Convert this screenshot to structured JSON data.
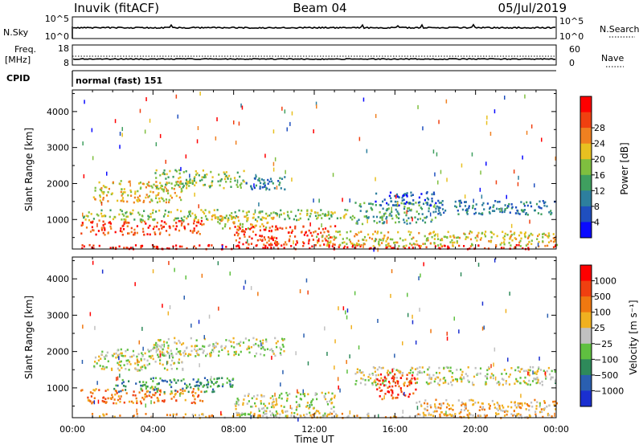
{
  "header": {
    "station": "Inuvik (fitACF)",
    "beam": "Beam 04",
    "date": "05/Jul/2019"
  },
  "top_panels": {
    "nsky": {
      "label": "N.Sky",
      "ticks": [
        "10^5",
        "10^0"
      ]
    },
    "nsearch": {
      "label": "N.Search",
      "ticks": [
        "10^5",
        "10^0"
      ]
    },
    "freq": {
      "label": "Freq.",
      "unit": "[MHz]",
      "ticks": [
        "18",
        "8"
      ]
    },
    "nave": {
      "label": "Nave",
      "ticks": [
        "60",
        "0"
      ]
    },
    "cpid": {
      "label": "CPID",
      "value": "normal (fast) 151"
    }
  },
  "chart_data": [
    {
      "type": "heatmap",
      "panel": "power",
      "xlabel": "",
      "ylabel": "Slant Range [km]",
      "x_ticks": [
        "00:00",
        "04:00",
        "08:00",
        "12:00",
        "16:00",
        "20:00",
        "00:00"
      ],
      "xlim_hours": [
        0,
        24
      ],
      "y_ticks": [
        1000,
        2000,
        3000,
        4000
      ],
      "ylim": [
        180,
        4600
      ],
      "colorbar": {
        "label": "Power [dB]",
        "ticks": [
          "4",
          "8",
          "12",
          "16",
          "20",
          "24",
          "28"
        ],
        "colors": [
          "#0a0aff",
          "#1f4fbf",
          "#2d7f9e",
          "#3f9f5f",
          "#7fbf3f",
          "#e8c020",
          "#f08020",
          "#f04010",
          "#ff0000"
        ]
      },
      "bands": [
        {
          "t0": 0.4,
          "t1": 6.5,
          "r0": 600,
          "r1": 1000,
          "level": 7
        },
        {
          "t0": 6.5,
          "t1": 10,
          "r0": 780,
          "r1": 1150,
          "level": 5
        },
        {
          "t0": 8,
          "t1": 13,
          "r0": 300,
          "r1": 850,
          "level": 7
        },
        {
          "t0": 0.4,
          "t1": 24,
          "r0": 200,
          "r1": 320,
          "level": 8
        },
        {
          "t0": 1,
          "t1": 5.5,
          "r0": 1500,
          "r1": 2100,
          "level": 5
        },
        {
          "t0": 4,
          "t1": 8.5,
          "r0": 1900,
          "r1": 2400,
          "level": 4
        },
        {
          "t0": 8.5,
          "t1": 10.5,
          "r0": 1850,
          "r1": 2250,
          "level": 2
        },
        {
          "t0": 0.5,
          "t1": 14,
          "r0": 1000,
          "r1": 1300,
          "level": 4
        },
        {
          "t0": 14,
          "t1": 18,
          "r0": 900,
          "r1": 1500,
          "level": 3
        },
        {
          "t0": 18,
          "t1": 24,
          "r0": 1150,
          "r1": 1550,
          "level": 2
        },
        {
          "t0": 15,
          "t1": 18,
          "r0": 1400,
          "r1": 1800,
          "level": 1
        },
        {
          "t0": 12,
          "t1": 24,
          "r0": 280,
          "r1": 700,
          "level": 5
        }
      ]
    },
    {
      "type": "heatmap",
      "panel": "velocity",
      "xlabel": "Time UT",
      "ylabel": "Slant Range [km]",
      "x_ticks": [
        "00:00",
        "04:00",
        "08:00",
        "12:00",
        "16:00",
        "20:00",
        "00:00"
      ],
      "xlim_hours": [
        0,
        24
      ],
      "y_ticks": [
        1000,
        2000,
        3000,
        4000
      ],
      "ylim": [
        180,
        4600
      ],
      "colorbar": {
        "label": "Velocity [m s⁻¹]",
        "ticks": [
          "1000",
          "500",
          "100",
          "25",
          "−25",
          "−100",
          "−500",
          "−1000"
        ],
        "colors": [
          "#1a2fd0",
          "#2a5fb0",
          "#2e8a5a",
          "#5fc040",
          "#c0c0c0",
          "#f0b020",
          "#f07810",
          "#f04010",
          "#ff0000"
        ]
      },
      "bands": [
        {
          "t0": 0.4,
          "t1": 6.5,
          "r0": 600,
          "r1": 1000,
          "level": 6
        },
        {
          "t0": 2,
          "t1": 8,
          "r0": 900,
          "r1": 1300,
          "level": 2
        },
        {
          "t0": 8,
          "t1": 13,
          "r0": 250,
          "r1": 900,
          "level": 4
        },
        {
          "t0": 1,
          "t1": 5.5,
          "r0": 1500,
          "r1": 2100,
          "level": 4
        },
        {
          "t0": 4,
          "t1": 10.5,
          "r0": 1900,
          "r1": 2400,
          "level": 4
        },
        {
          "t0": 14,
          "t1": 24,
          "r0": 1100,
          "r1": 1600,
          "level": 4
        },
        {
          "t0": 15,
          "t1": 17,
          "r0": 700,
          "r1": 1400,
          "level": 7
        },
        {
          "t0": 0.4,
          "t1": 24,
          "r0": 200,
          "r1": 320,
          "level": 5
        },
        {
          "t0": 17,
          "t1": 24,
          "r0": 250,
          "r1": 700,
          "level": 5
        }
      ]
    }
  ]
}
